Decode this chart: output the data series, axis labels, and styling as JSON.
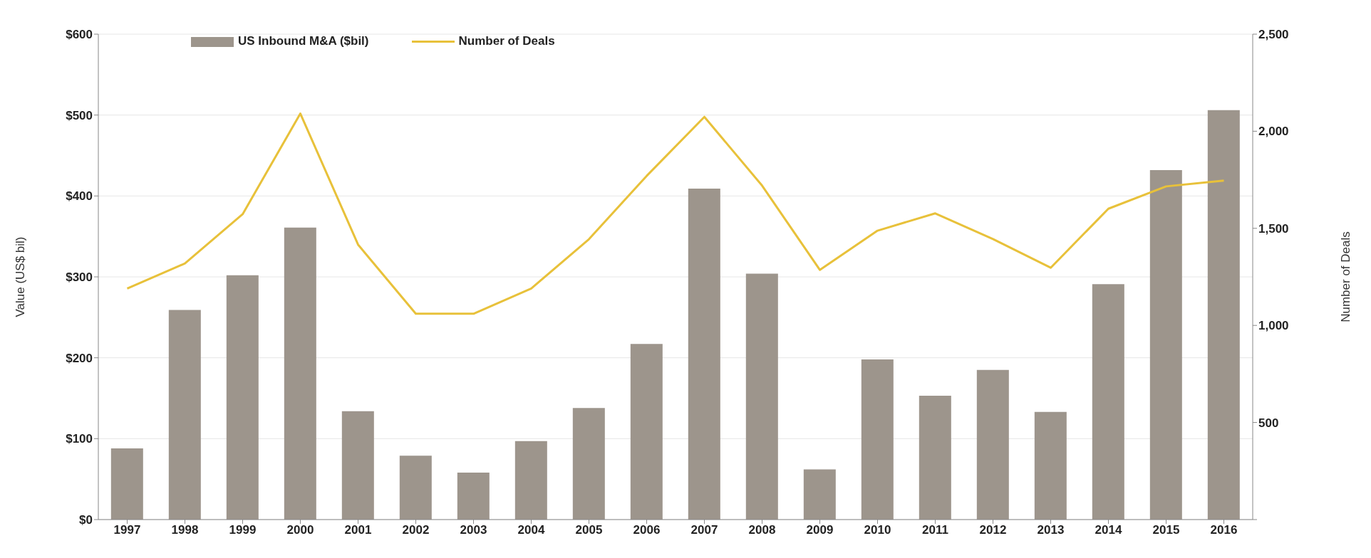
{
  "chart_data": {
    "type": "bar",
    "categories": [
      "1997",
      "1998",
      "1999",
      "2000",
      "2001",
      "2002",
      "2003",
      "2004",
      "2005",
      "2006",
      "2007",
      "2008",
      "2009",
      "2010",
      "2011",
      "2012",
      "2013",
      "2014",
      "2015",
      "2016"
    ],
    "series": [
      {
        "name": "US Inbound M&A ($bil)",
        "color": "#9d958c",
        "values": [
          88,
          259,
          302,
          361,
          134,
          79,
          58,
          97,
          138,
          217,
          409,
          304,
          62,
          198,
          153,
          185,
          133,
          291,
          432,
          506
        ]
      },
      {
        "name": "Number of Deals",
        "type": "line",
        "axis": "y2",
        "color": "#e8c13a",
        "values": [
          1190,
          1319,
          1573,
          2091,
          1416,
          1060,
          1060,
          1190,
          1444,
          1770,
          2074,
          1720,
          1286,
          1488,
          1577,
          1445,
          1297,
          1601,
          1716,
          1746
        ]
      }
    ],
    "ylabel": "Value (US$ bil)",
    "y2label": "Number of Deals",
    "ylim": [
      0,
      600
    ],
    "yticks": [
      {
        "value": 0,
        "label": "$0"
      },
      {
        "value": 100,
        "label": "$100"
      },
      {
        "value": 200,
        "label": "$200"
      },
      {
        "value": 300,
        "label": "$300"
      },
      {
        "value": 400,
        "label": "$400"
      },
      {
        "value": 500,
        "label": "$500"
      },
      {
        "value": 600,
        "label": "$600"
      }
    ],
    "y2lim": [
      0,
      2500
    ],
    "y2ticks": [
      {
        "value": 0,
        "label": null
      },
      {
        "value": 500,
        "label": "500"
      },
      {
        "value": 1000,
        "label": "1,000"
      },
      {
        "value": 1500,
        "label": "1,500"
      },
      {
        "value": 2000,
        "label": "2,000"
      },
      {
        "value": 2500,
        "label": "2,500"
      }
    ],
    "grid": "y",
    "legend": "top left",
    "marker": "none"
  }
}
